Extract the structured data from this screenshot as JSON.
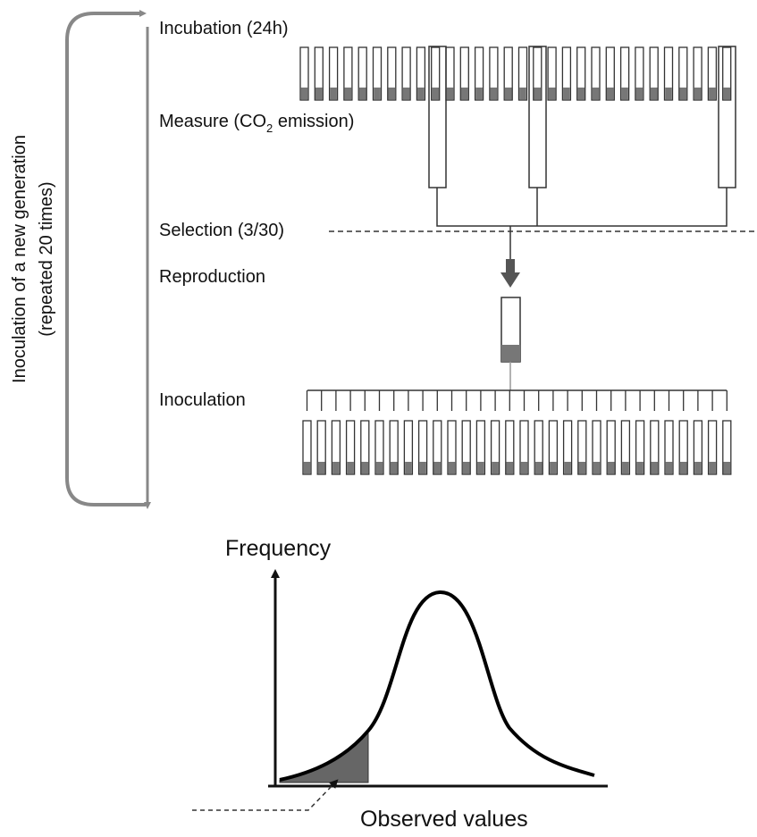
{
  "steps": {
    "incubation": "Incubation (24h)",
    "measure": {
      "before": "Measure (CO",
      "subscript": "2",
      "after": " emission)"
    },
    "selection": "Selection (3/30)",
    "reproduction": "Reproduction",
    "inoculation": "Inoculation"
  },
  "loop": {
    "line1": "Inoculation of a new generation",
    "line2": "(repeated 20 times)"
  },
  "distribution": {
    "y_label": "Frequency",
    "x_label": "Observed values"
  }
}
